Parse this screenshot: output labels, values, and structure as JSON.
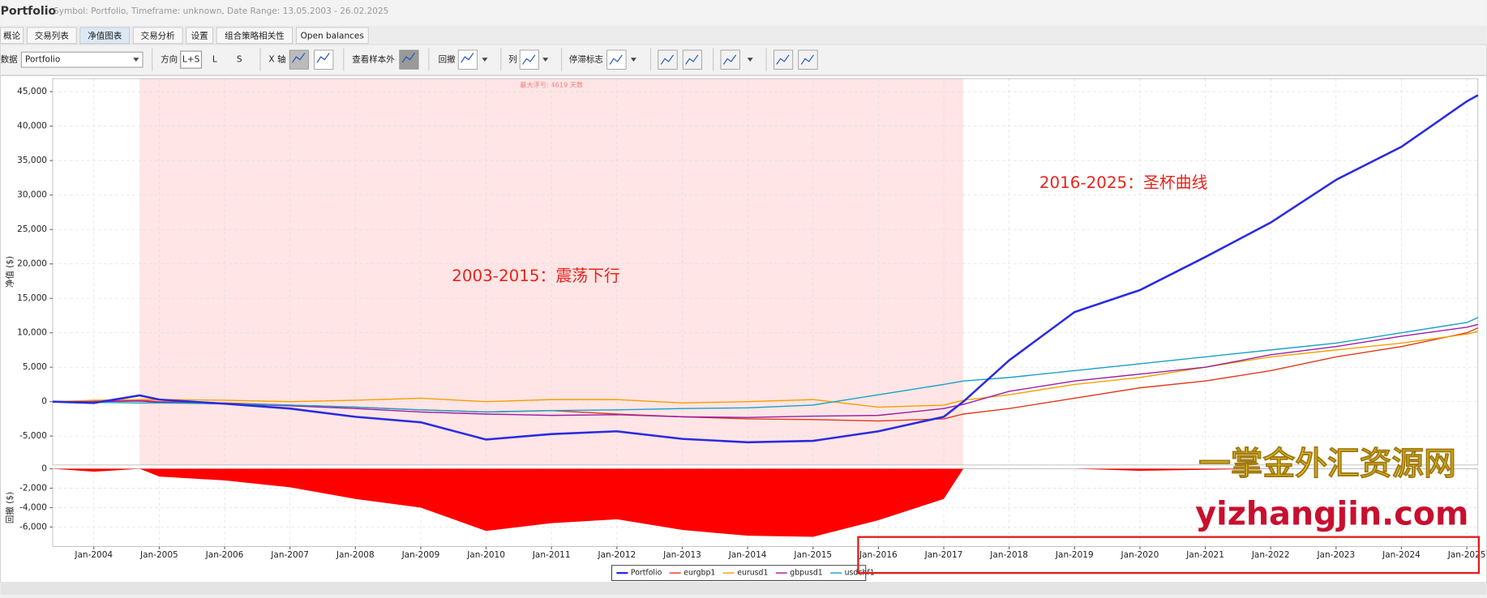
{
  "header": {
    "title": "Portfolio",
    "info": "Symbol: Portfolio, Timeframe: unknown, Date Range: 13.05.2003 - 26.02.2025"
  },
  "tabs": [
    "概论",
    "交易列表",
    "净值图表",
    "交易分析",
    "设置",
    "组合策略相关性",
    "Open balances"
  ],
  "toolbar": {
    "data_label": "数据",
    "data_select": "Portfolio",
    "direction": "方向",
    "ls": "L+S",
    "l": "L",
    "s": "S",
    "xaxis": "X 轴",
    "oos": "查看样本外",
    "drawdown": "回撤",
    "columns": "列",
    "stagnation": "停滞标志"
  },
  "watermark": [
    "一掌金外汇资源网",
    "yizhangjin.com"
  ],
  "chart_data": [
    {
      "type": "line",
      "ylabel": "净值 ($)",
      "grid": true,
      "x": [
        2003.37,
        2004,
        2004.7,
        2005,
        2006,
        2007,
        2008,
        2009,
        2010,
        2011,
        2012,
        2013,
        2014,
        2015,
        2016,
        2017,
        2017.3,
        2018,
        2019,
        2020,
        2021,
        2022,
        2023,
        2024,
        2025,
        2025.17
      ],
      "xlim": [
        2003.37,
        2025.17
      ],
      "xticks": [
        {
          "value": 2004,
          "label": "Jan-2004"
        },
        {
          "value": 2005,
          "label": "Jan-2005"
        },
        {
          "value": 2006,
          "label": "Jan-2006"
        },
        {
          "value": 2007,
          "label": "Jan-2007"
        },
        {
          "value": 2008,
          "label": "Jan-2008"
        },
        {
          "value": 2009,
          "label": "Jan-2009"
        },
        {
          "value": 2010,
          "label": "Jan-2010"
        },
        {
          "value": 2011,
          "label": "Jan-2011"
        },
        {
          "value": 2012,
          "label": "Jan-2012"
        },
        {
          "value": 2013,
          "label": "Jan-2013"
        },
        {
          "value": 2014,
          "label": "Jan-2014"
        },
        {
          "value": 2015,
          "label": "Jan-2015"
        },
        {
          "value": 2016,
          "label": "Jan-2016"
        },
        {
          "value": 2017,
          "label": "Jan-2017"
        },
        {
          "value": 2018,
          "label": "Jan-2018"
        },
        {
          "value": 2019,
          "label": "Jan-2019"
        },
        {
          "value": 2020,
          "label": "Jan-2020"
        },
        {
          "value": 2021,
          "label": "Jan-2021"
        },
        {
          "value": 2022,
          "label": "Jan-2022"
        },
        {
          "value": 2023,
          "label": "Jan-2023"
        },
        {
          "value": 2024,
          "label": "Jan-2024"
        },
        {
          "value": 2025,
          "label": "Jan-2025"
        }
      ],
      "ylim": [
        -9200,
        46900
      ],
      "yticks": [
        {
          "value": -5000,
          "label": "-5,000"
        },
        0,
        {
          "value": 5000,
          "label": "5,000"
        },
        {
          "value": 10000,
          "label": "10,000"
        },
        {
          "value": 15000,
          "label": "15,000"
        },
        {
          "value": 20000,
          "label": "20,000"
        },
        {
          "value": 25000,
          "label": "25,000"
        },
        {
          "value": 30000,
          "label": "30,000"
        },
        {
          "value": 35000,
          "label": "35,000"
        },
        {
          "value": 40000,
          "label": "40,000"
        },
        {
          "value": 45000,
          "label": "45,000"
        }
      ],
      "shade": [
        2004.7,
        2017.3
      ],
      "shade_label": "最大浮亏: 4619 天数",
      "shade_color": "#ffe5e5",
      "annotations": [
        "2003-2015：震荡下行",
        "2016-2025：圣杯曲线"
      ],
      "series": [
        {
          "name": "Portfolio",
          "color": "#2b2be0",
          "values": [
            0,
            -200,
            900,
            300,
            -300,
            -1000,
            -2200,
            -3000,
            -5500,
            -4700,
            -4300,
            -5400,
            -5900,
            -5700,
            -4300,
            -2200,
            0,
            6000,
            13000,
            16200,
            21000,
            26000,
            32200,
            37000,
            43600,
            44500
          ]
        },
        {
          "name": "eurgbp1",
          "color": "#e03a1e",
          "values": [
            0,
            100,
            200,
            0,
            -200,
            -500,
            -800,
            -1200,
            -1500,
            -1300,
            -1800,
            -2200,
            -2500,
            -2600,
            -2800,
            -2500,
            -1800,
            -1000,
            500,
            2000,
            3000,
            4500,
            6500,
            8000,
            10000,
            10700
          ]
        },
        {
          "name": "eurusd1",
          "color": "#f5a000",
          "values": [
            0,
            200,
            300,
            300,
            200,
            0,
            200,
            500,
            0,
            300,
            300,
            -200,
            0,
            300,
            -800,
            -500,
            200,
            1000,
            2500,
            3500,
            5000,
            6500,
            7500,
            8500,
            9800,
            10200
          ]
        },
        {
          "name": "gbpusd1",
          "color": "#9a1fa6",
          "values": [
            0,
            0,
            100,
            -100,
            -300,
            -600,
            -1000,
            -1500,
            -1800,
            -2000,
            -1900,
            -2200,
            -2300,
            -2100,
            -2000,
            -1000,
            -400,
            1500,
            3000,
            4000,
            5000,
            6800,
            8000,
            9500,
            10800,
            11200
          ]
        },
        {
          "name": "usdchf1",
          "color": "#1aa0c8",
          "values": [
            0,
            -100,
            -200,
            -200,
            -300,
            -500,
            -800,
            -1200,
            -1500,
            -1300,
            -1200,
            -1000,
            -900,
            -500,
            1000,
            2500,
            3000,
            3500,
            4500,
            5500,
            6500,
            7500,
            8500,
            10000,
            11500,
            12200
          ]
        }
      ]
    },
    {
      "type": "area",
      "ylabel": "回撤 ($)",
      "color": "#ff0000",
      "values": [
        0,
        -300,
        0,
        -800,
        -1200,
        -1900,
        -3100,
        -4000,
        -6400,
        -5600,
        -5200,
        -6300,
        -6900,
        -7000,
        -5300,
        -3100,
        0,
        0,
        0,
        -200,
        -100,
        0,
        0,
        0,
        0,
        0
      ],
      "ylim": [
        -8000,
        0
      ],
      "yticks": [
        0,
        {
          "value": -2000,
          "label": "-2,000"
        },
        {
          "value": -4000,
          "label": "-4,000"
        },
        {
          "value": -6000,
          "label": "-6,000"
        }
      ]
    }
  ]
}
